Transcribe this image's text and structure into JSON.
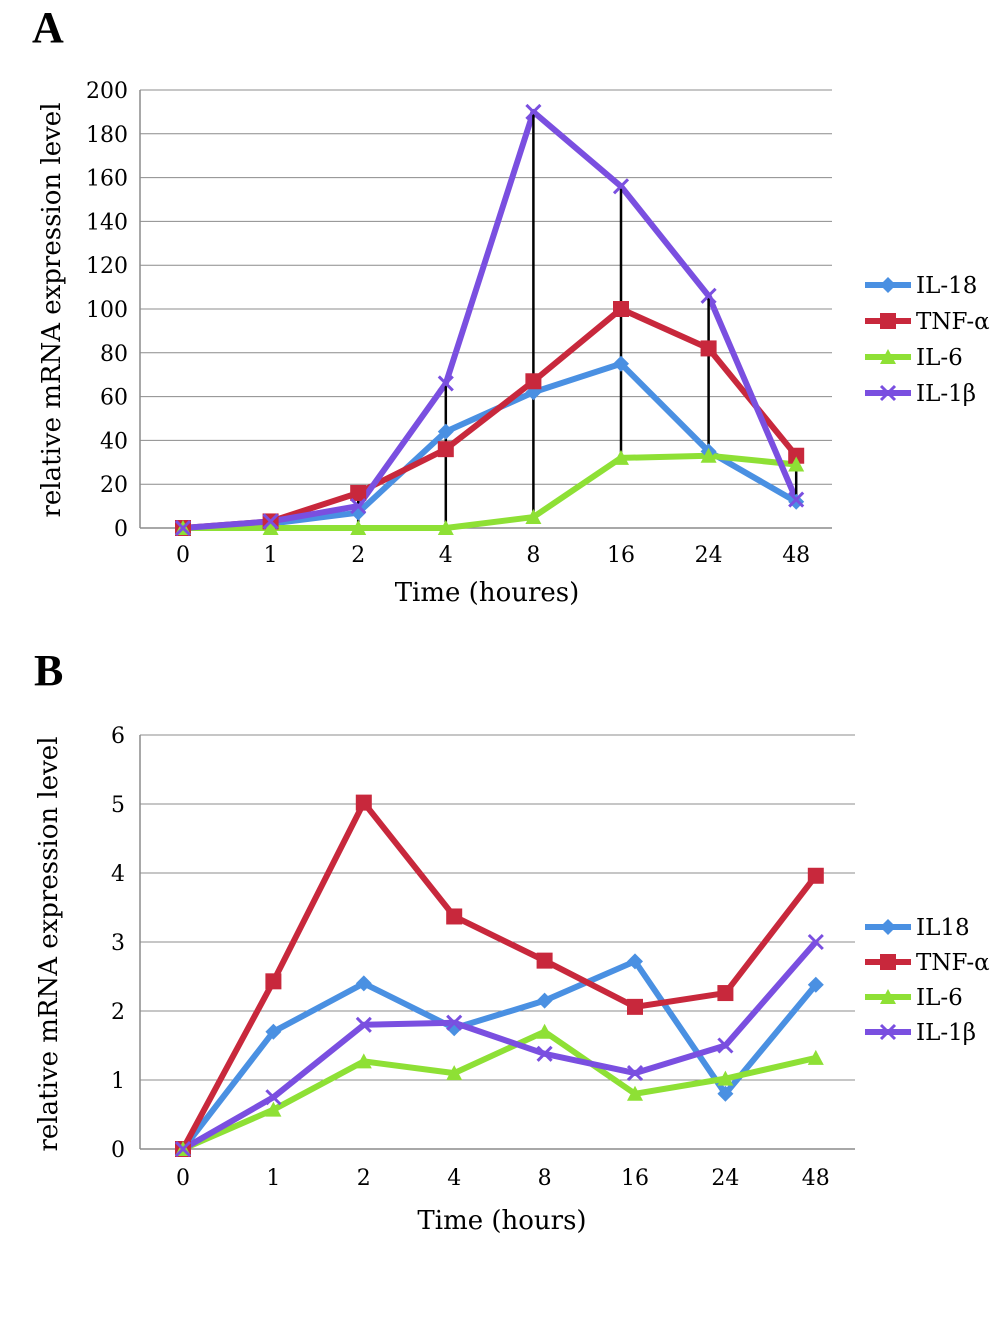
{
  "chart_data": [
    {
      "panel": "A",
      "type": "line",
      "categories": [
        "0",
        "1",
        "2",
        "4",
        "8",
        "16",
        "24",
        "48"
      ],
      "series": [
        {
          "name": "IL-18",
          "color": "#4a90e2",
          "marker": "diamond",
          "values": [
            0,
            2,
            7,
            44,
            62,
            75,
            35,
            12
          ]
        },
        {
          "name": "TNF-α",
          "color": "#c8283c",
          "marker": "square",
          "values": [
            0,
            3,
            16,
            36,
            67,
            100,
            82,
            33
          ]
        },
        {
          "name": "IL-6",
          "color": "#8ee035",
          "marker": "triangle",
          "values": [
            0,
            0,
            0,
            0,
            5,
            32,
            33,
            29
          ]
        },
        {
          "name": "IL-1β",
          "color": "#7a4fe0",
          "marker": "x",
          "values": [
            0,
            3,
            10,
            66,
            190,
            156,
            106,
            13
          ]
        }
      ],
      "range_lines": true,
      "xlabel": "Time (houres)",
      "ylabel": "relative mRNA expression level",
      "ylim": [
        0,
        200
      ],
      "yticks": [
        0,
        20,
        40,
        60,
        80,
        100,
        120,
        140,
        160,
        180,
        200
      ],
      "grid": true,
      "legend": "right"
    },
    {
      "panel": "B",
      "type": "line",
      "categories": [
        "0",
        "1",
        "2",
        "4",
        "8",
        "16",
        "24",
        "48"
      ],
      "series": [
        {
          "name": "IL18",
          "color": "#4a90e2",
          "marker": "diamond",
          "values": [
            0,
            1.7,
            2.4,
            1.75,
            2.15,
            2.72,
            0.8,
            2.38
          ]
        },
        {
          "name": "TNF-α",
          "color": "#c8283c",
          "marker": "square",
          "values": [
            0,
            2.43,
            5.02,
            3.37,
            2.73,
            2.06,
            2.26,
            3.96
          ]
        },
        {
          "name": "IL-6",
          "color": "#8ee035",
          "marker": "triangle",
          "values": [
            0,
            0.57,
            1.27,
            1.1,
            1.7,
            0.8,
            1.02,
            1.32
          ]
        },
        {
          "name": "IL-1β",
          "color": "#7a4fe0",
          "marker": "x",
          "values": [
            0,
            0.75,
            1.8,
            1.83,
            1.38,
            1.1,
            1.5,
            3.0
          ]
        }
      ],
      "range_lines": false,
      "xlabel": "Time (hours)",
      "ylabel": "relative mRNA expression level",
      "ylim": [
        0,
        6
      ],
      "yticks": [
        0,
        1,
        2,
        3,
        4,
        5,
        6
      ],
      "grid": true,
      "legend": "right"
    }
  ],
  "panels": {
    "a": "A",
    "b": "B"
  }
}
